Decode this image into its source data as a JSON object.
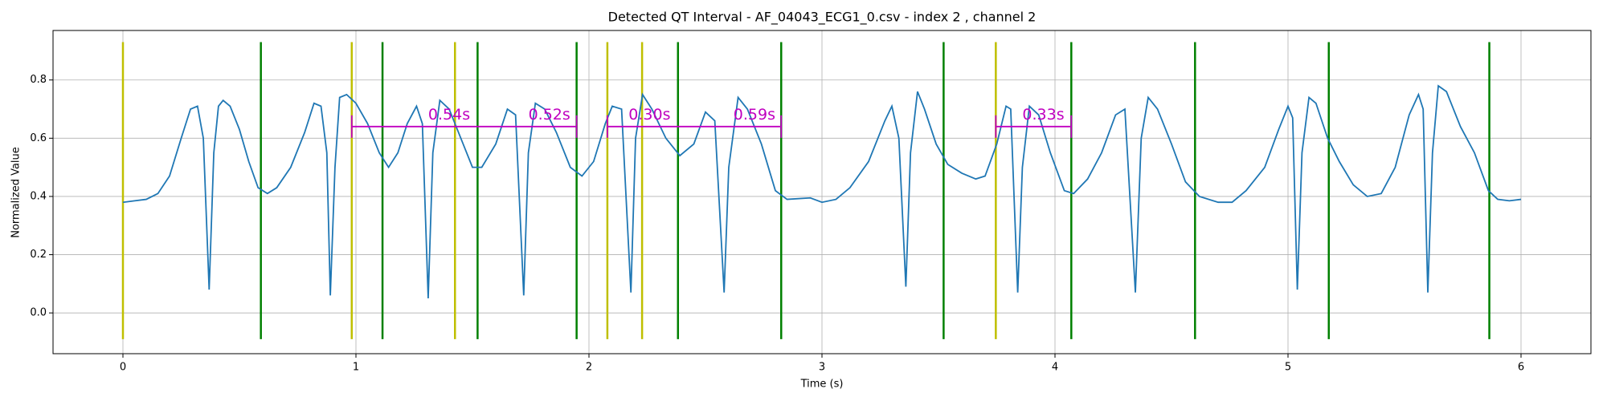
{
  "chart_data": {
    "type": "line",
    "title": "Detected QT Interval - AF_04043_ECG1_0.csv - index 2 , channel 2",
    "x_label": "Time (s)",
    "y_label": "Normalized Value",
    "xlim": [
      -0.3,
      6.3
    ],
    "ylim": [
      -0.14,
      0.97
    ],
    "xticks": [
      0,
      1,
      2,
      3,
      4,
      5,
      6
    ],
    "yticks": [
      {
        "value": 0,
        "label": "0.0"
      },
      {
        "value": 0.2,
        "label": "0.2"
      },
      {
        "value": 0.4,
        "label": "0.4"
      },
      {
        "value": 0.6,
        "label": "0.6"
      },
      {
        "value": 0.8,
        "label": "0.8"
      }
    ],
    "grid": true,
    "series": [
      {
        "color": "#1f77b4",
        "x": [
          0,
          0.05,
          0.1,
          0.15,
          0.2,
          0.25,
          0.29,
          0.32,
          0.345,
          0.37,
          0.39,
          0.41,
          0.43,
          0.46,
          0.5,
          0.54,
          0.58,
          0.62,
          0.66,
          0.72,
          0.78,
          0.82,
          0.85,
          0.875,
          0.89,
          0.91,
          0.93,
          0.96,
          1.0,
          1.05,
          1.1,
          1.14,
          1.18,
          1.22,
          1.26,
          1.285,
          1.31,
          1.33,
          1.36,
          1.4,
          1.45,
          1.5,
          1.54,
          1.6,
          1.65,
          1.685,
          1.72,
          1.74,
          1.77,
          1.81,
          1.86,
          1.92,
          1.97,
          2.02,
          2.07,
          2.1,
          2.14,
          2.18,
          2.2,
          2.23,
          2.27,
          2.33,
          2.39,
          2.45,
          2.5,
          2.54,
          2.58,
          2.6,
          2.64,
          2.68,
          2.74,
          2.8,
          2.85,
          2.95,
          3.0,
          3.06,
          3.12,
          3.2,
          3.27,
          3.3,
          3.33,
          3.36,
          3.38,
          3.41,
          3.44,
          3.49,
          3.54,
          3.6,
          3.66,
          3.7,
          3.75,
          3.79,
          3.81,
          3.84,
          3.86,
          3.89,
          3.93,
          3.98,
          4.04,
          4.08,
          4.14,
          4.2,
          4.26,
          4.3,
          4.345,
          4.37,
          4.4,
          4.44,
          4.5,
          4.56,
          4.62,
          4.7,
          4.76,
          4.82,
          4.9,
          4.96,
          5.0,
          5.02,
          5.04,
          5.06,
          5.09,
          5.12,
          5.17,
          5.22,
          5.28,
          5.34,
          5.4,
          5.46,
          5.52,
          5.56,
          5.58,
          5.6,
          5.62,
          5.645,
          5.68,
          5.74,
          5.8,
          5.86,
          5.9,
          5.95,
          6.0
        ],
        "values": [
          0.38,
          0.385,
          0.39,
          0.41,
          0.47,
          0.6,
          0.7,
          0.71,
          0.6,
          0.08,
          0.55,
          0.71,
          0.73,
          0.71,
          0.63,
          0.52,
          0.43,
          0.41,
          0.43,
          0.5,
          0.62,
          0.72,
          0.71,
          0.55,
          0.06,
          0.5,
          0.74,
          0.75,
          0.72,
          0.65,
          0.55,
          0.5,
          0.55,
          0.65,
          0.71,
          0.65,
          0.05,
          0.55,
          0.73,
          0.7,
          0.6,
          0.5,
          0.5,
          0.58,
          0.7,
          0.68,
          0.06,
          0.55,
          0.72,
          0.7,
          0.62,
          0.5,
          0.47,
          0.52,
          0.65,
          0.71,
          0.7,
          0.07,
          0.6,
          0.75,
          0.7,
          0.6,
          0.54,
          0.58,
          0.69,
          0.66,
          0.07,
          0.5,
          0.74,
          0.7,
          0.58,
          0.42,
          0.39,
          0.395,
          0.38,
          0.39,
          0.43,
          0.52,
          0.66,
          0.71,
          0.6,
          0.09,
          0.55,
          0.76,
          0.7,
          0.58,
          0.51,
          0.48,
          0.46,
          0.47,
          0.58,
          0.71,
          0.7,
          0.07,
          0.5,
          0.71,
          0.68,
          0.55,
          0.42,
          0.41,
          0.46,
          0.55,
          0.68,
          0.7,
          0.07,
          0.6,
          0.74,
          0.7,
          0.58,
          0.45,
          0.4,
          0.38,
          0.38,
          0.42,
          0.5,
          0.63,
          0.71,
          0.67,
          0.08,
          0.55,
          0.74,
          0.72,
          0.6,
          0.52,
          0.44,
          0.4,
          0.41,
          0.5,
          0.68,
          0.75,
          0.7,
          0.07,
          0.55,
          0.78,
          0.76,
          0.64,
          0.55,
          0.42,
          0.39,
          0.385,
          0.39
        ]
      }
    ],
    "marker_span": [
      -0.09,
      0.93
    ],
    "onset_lines": {
      "color": "#bfbf00",
      "x": [
        0,
        0.982,
        1.425,
        2.079,
        2.228,
        3.746
      ]
    },
    "offset_lines": {
      "color": "#008000",
      "x": [
        0.592,
        1.114,
        1.522,
        1.947,
        2.382,
        2.825,
        3.522,
        4.07,
        4.601,
        5.175,
        5.864
      ]
    },
    "interval_color": "#c000c0",
    "intervals": [
      {
        "x": [
          0.982,
          1.947
        ],
        "y": 0.64
      },
      {
        "x": [
          2.079,
          2.825
        ],
        "y": 0.64
      },
      {
        "x": [
          3.746,
          4.07
        ],
        "y": 0.64
      }
    ],
    "annotations": [
      {
        "text": "0.54s",
        "x": 1.4,
        "y": 0.68
      },
      {
        "text": "0.52s",
        "x": 1.83,
        "y": 0.68
      },
      {
        "text": "0.30s",
        "x": 2.26,
        "y": 0.68
      },
      {
        "text": "0.59s",
        "x": 2.71,
        "y": 0.68
      },
      {
        "text": "0.33s",
        "x": 3.95,
        "y": 0.68
      }
    ]
  }
}
